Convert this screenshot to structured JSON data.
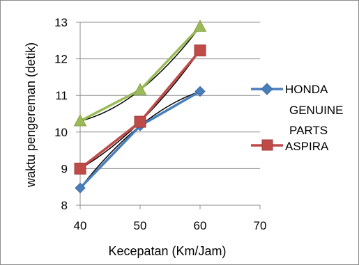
{
  "chart_data": {
    "type": "line",
    "xlabel": "Kecepatan (Km/Jam)",
    "ylabel": "waktu pengereman (detik)",
    "xlim": [
      40,
      70
    ],
    "ylim": [
      8,
      13
    ],
    "x_ticks": [
      "40",
      "50",
      "60",
      "70"
    ],
    "y_ticks": [
      "8",
      "9",
      "10",
      "11",
      "12",
      "13"
    ],
    "grid": "horizontal",
    "legend_position": "right",
    "x": [
      40,
      50,
      60
    ],
    "series": [
      {
        "name": "HONDA GENUINE PARTS",
        "values": [
          8.47,
          10.17,
          11.11
        ],
        "color": "#4a7ebb",
        "marker": "diamond"
      },
      {
        "name": "ASPIRA",
        "values": [
          9.0,
          10.28,
          12.23
        ],
        "color": "#be4b48",
        "marker": "square"
      },
      {
        "name": "",
        "values": [
          10.3,
          11.15,
          12.88
        ],
        "color": "#9bbb59",
        "marker": "triangle"
      }
    ],
    "legend": {
      "honda_lines": [
        "HONDA",
        "GENUINE",
        "PARTS"
      ],
      "aspira": "ASPIRA"
    },
    "trendline_color": "#000000"
  }
}
